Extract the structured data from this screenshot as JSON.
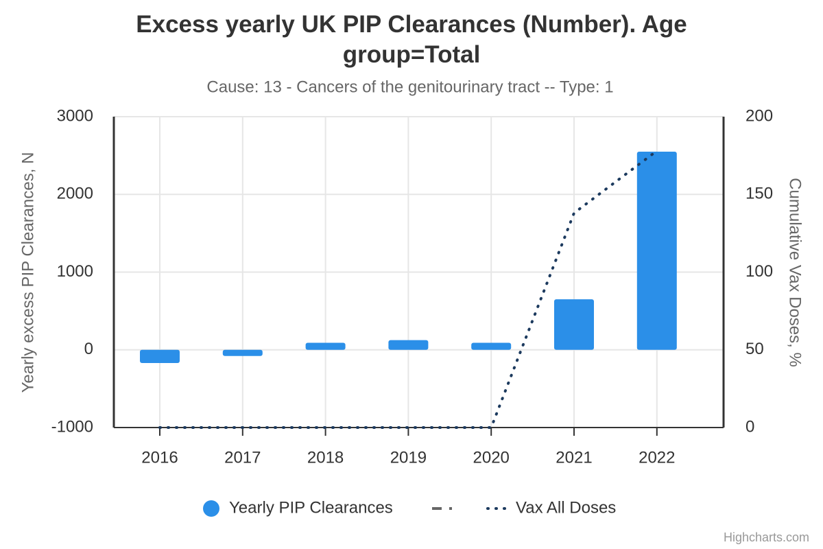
{
  "chart_data": {
    "type": "bar",
    "title": "Excess yearly UK PIP Clearances (Number). Age group=Total",
    "subtitle": "Cause: 13 - Cancers of the genitourinary tract -- Type: 1",
    "y_label": "Yearly excess PIP Clearances, N",
    "y2_label": "Cumulative Vax Doses, %",
    "credits": "Highcharts.com",
    "categories": [
      "2016",
      "2017",
      "2018",
      "2019",
      "2020",
      "2021",
      "2022"
    ],
    "series": [
      {
        "name": "Yearly PIP Clearances",
        "type": "bar",
        "color": "#2b8fe8",
        "values": [
          -170,
          -80,
          90,
          125,
          90,
          650,
          2550
        ]
      },
      {
        "name": "Vax All Doses",
        "type": "line",
        "axis": "y2",
        "color": "#1c3a5e",
        "values": [
          0,
          0,
          0,
          0,
          0,
          138,
          178
        ]
      }
    ],
    "ylim": [
      -1000,
      3000
    ],
    "yticks": [
      -1000,
      0,
      1000,
      2000,
      3000
    ],
    "y2lim": [
      0,
      200
    ],
    "y2ticks": [
      0,
      50,
      100,
      150,
      200
    ],
    "grid": true
  }
}
